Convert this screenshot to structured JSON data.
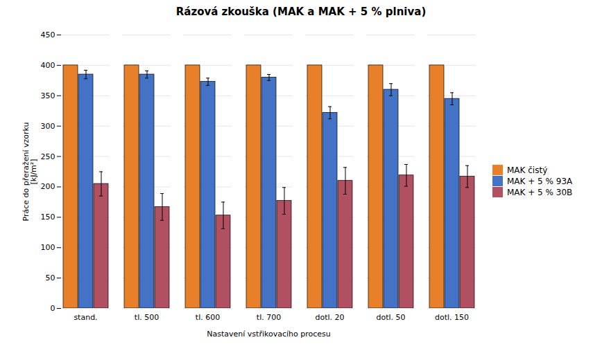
{
  "chart_data": {
    "type": "bar",
    "title": "Rázová zkouška (MAK a MAK + 5 % plniva)",
    "xlabel": "Nastavení vstřikovacího procesu",
    "ylabel": "Práce do přeražení vzorku\n[kJ/m²]",
    "categories": [
      "stand.",
      "tl. 500",
      "tl. 600",
      "tl. 700",
      "dotl. 20",
      "dotl. 50",
      "dotl. 150"
    ],
    "series": [
      {
        "name": "MAK čistý",
        "color": "#E8802A",
        "values": [
          400,
          400,
          400,
          400,
          400,
          400,
          400
        ]
      },
      {
        "name": "MAK + 5 % 93A",
        "color": "#4472C4",
        "values": [
          385,
          385,
          373,
          380,
          322,
          360,
          345
        ],
        "errors": [
          7,
          6,
          6,
          5,
          10,
          10,
          10
        ]
      },
      {
        "name": "MAK + 5 % 30B",
        "color": "#B05060",
        "values": [
          205,
          167,
          153,
          177,
          210,
          219,
          217
        ],
        "errors": [
          20,
          22,
          22,
          22,
          22,
          18,
          18
        ]
      }
    ],
    "ylim": [
      0,
      450
    ],
    "yticks": [
      0,
      50,
      100,
      150,
      200,
      250,
      300,
      350,
      400,
      450
    ],
    "grid": true,
    "legend": "right"
  }
}
